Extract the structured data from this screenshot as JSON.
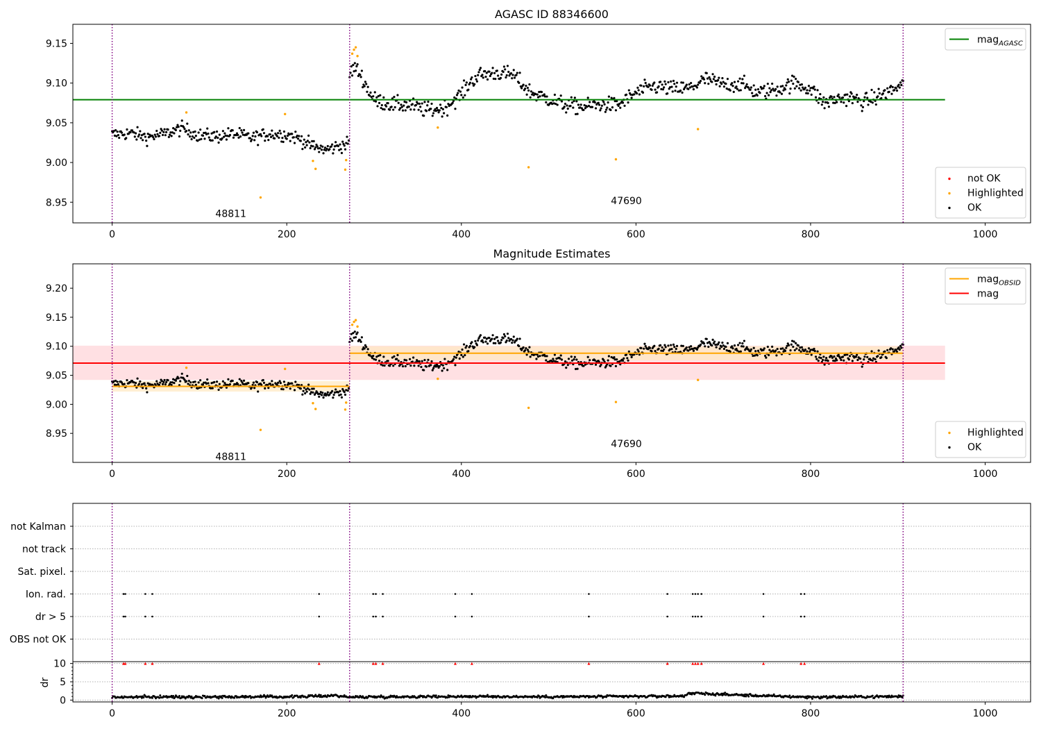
{
  "chart_data": [
    {
      "type": "scatter",
      "title": "AGASC ID 88346600",
      "xlim": [
        -45,
        1052
      ],
      "ylim": [
        8.924,
        9.174
      ],
      "xticks": [
        0,
        200,
        400,
        600,
        800,
        1000
      ],
      "yticks": [
        8.95,
        9.0,
        9.05,
        9.1,
        9.15
      ],
      "obs_boundaries": [
        0,
        272,
        906
      ],
      "obs_labels": [
        {
          "text": "48811",
          "x": 136,
          "y": 8.936
        },
        {
          "text": "47690",
          "x": 589,
          "y": 8.952
        }
      ],
      "reference_lines": [
        {
          "name": "mag_{AGASC}",
          "y": 9.079,
          "x": [
            -45,
            954
          ],
          "color": "#008000"
        }
      ],
      "legend": [
        {
          "position": "top-right",
          "entries": [
            {
              "label": "mag",
              "sub": "AGASC",
              "kind": "line",
              "color": "#008000"
            }
          ]
        },
        {
          "position": "lower-right",
          "entries": [
            {
              "label": "not OK",
              "kind": "dot",
              "color": "#ff0000"
            },
            {
              "label": "Highlighted",
              "kind": "dot",
              "color": "#ffa500"
            },
            {
              "label": "OK",
              "kind": "dot",
              "color": "#000000"
            }
          ]
        }
      ],
      "series": [
        {
          "name": "OK",
          "color": "#000000",
          "segments": [
            {
              "x": [
                0,
                20,
                40,
                60,
                80,
                100,
                120,
                140,
                160,
                180,
                200,
                215,
                230,
                245,
                260,
                272
              ],
              "y": [
                9.035,
                9.037,
                9.032,
                9.036,
                9.043,
                9.034,
                9.033,
                9.036,
                9.031,
                9.036,
                9.035,
                9.03,
                9.02,
                9.016,
                9.021,
                9.024
              ],
              "noise": 0.006
            },
            {
              "x": [
                272,
                278,
                285,
                292,
                300,
                320,
                340,
                360,
                380,
                400,
                410,
                420,
                440,
                460,
                470,
                480,
                500,
                520,
                540,
                560,
                580,
                600,
                620,
                640,
                660,
                680,
                700,
                720,
                740,
                760,
                780,
                800,
                815,
                830,
                845,
                860,
                880,
                906
              ],
              "y": [
                9.112,
                9.12,
                9.11,
                9.094,
                9.079,
                9.073,
                9.072,
                9.066,
                9.068,
                9.086,
                9.101,
                9.11,
                9.113,
                9.11,
                9.098,
                9.088,
                9.08,
                9.072,
                9.07,
                9.073,
                9.072,
                9.088,
                9.096,
                9.093,
                9.093,
                9.105,
                9.098,
                9.099,
                9.088,
                9.092,
                9.1,
                9.093,
                9.075,
                9.08,
                9.082,
                9.076,
                9.084,
                9.098
              ],
              "noise": 0.007
            }
          ]
        },
        {
          "name": "Highlighted",
          "color": "#ffa500",
          "points": [
            [
              85,
              9.063
            ],
            [
              170,
              8.956
            ],
            [
              198,
              9.061
            ],
            [
              230,
              9.002
            ],
            [
              233,
              8.992
            ],
            [
              267,
              8.991
            ],
            [
              268,
              9.003
            ],
            [
              275,
              9.137
            ],
            [
              277,
              9.142
            ],
            [
              279,
              9.145
            ],
            [
              281,
              9.134
            ],
            [
              373,
              9.044
            ],
            [
              477,
              8.994
            ],
            [
              577,
              9.004
            ],
            [
              671,
              9.042
            ]
          ]
        },
        {
          "name": "not OK",
          "color": "#ff0000",
          "points": []
        }
      ]
    },
    {
      "type": "scatter",
      "title": "Magnitude Estimates",
      "xlim": [
        -45,
        1052
      ],
      "ylim": [
        8.9,
        9.242
      ],
      "xticks": [
        0,
        200,
        400,
        600,
        800,
        1000
      ],
      "yticks": [
        8.95,
        9.0,
        9.05,
        9.1,
        9.15,
        9.2
      ],
      "obs_boundaries": [
        0,
        272,
        906
      ],
      "obs_labels": [
        {
          "text": "48811",
          "x": 136,
          "y": 8.91
        },
        {
          "text": "47690",
          "x": 589,
          "y": 8.932
        }
      ],
      "reference_lines": [
        {
          "name": "mag",
          "y": 9.071,
          "x": [
            -45,
            954
          ],
          "color": "#ff0000",
          "band": [
            9.042,
            9.101
          ]
        },
        {
          "name": "mag_{OBSID} 48811",
          "y": 9.031,
          "x": [
            0,
            272
          ],
          "color": "#ffa500",
          "band": [
            9.022,
            9.04
          ]
        },
        {
          "name": "mag_{OBSID} 47690",
          "y": 9.088,
          "x": [
            272,
            906
          ],
          "color": "#ffa500",
          "band": [
            9.076,
            9.1
          ]
        }
      ],
      "legend": [
        {
          "position": "top-right",
          "entries": [
            {
              "label": "mag",
              "sub": "OBSID",
              "kind": "line",
              "color": "#ffa500"
            },
            {
              "label": "mag",
              "kind": "line",
              "color": "#ff0000"
            }
          ]
        },
        {
          "position": "lower-right",
          "entries": [
            {
              "label": "Highlighted",
              "kind": "dot",
              "color": "#ffa500"
            },
            {
              "label": "OK",
              "kind": "dot",
              "color": "#000000"
            }
          ]
        }
      ]
    },
    {
      "type": "scatter",
      "title": "",
      "xlim": [
        -45,
        1052
      ],
      "xticks": [
        0,
        200,
        400,
        600,
        800,
        1000
      ],
      "flag_rows": [
        "not Kalman",
        "not track",
        "Sat. pixel.",
        "Ion. rad.",
        "dr > 5",
        "OBS not OK"
      ],
      "flagged_x": [
        13,
        15,
        38,
        46,
        237,
        299,
        302,
        310,
        393,
        412,
        546,
        636,
        665,
        668,
        671,
        675,
        746,
        789,
        793
      ],
      "flags_by_row": {
        "Ion. rad.": "flagged_x",
        "dr > 5": "flagged_x"
      },
      "obs_boundaries": [
        0,
        272,
        906
      ],
      "dr": {
        "ylabel": "dr",
        "ylim": [
          -0.5,
          10.5
        ],
        "yticks": [
          0,
          5,
          10
        ],
        "clip_value": 10,
        "typical": {
          "x": [
            0,
            100,
            200,
            240,
            255,
            272,
            300,
            400,
            500,
            600,
            655,
            660,
            740,
            800,
            906
          ],
          "y": [
            0.8,
            0.9,
            0.9,
            1.1,
            1.3,
            0.8,
            0.9,
            1.0,
            0.9,
            1.0,
            1.1,
            1.9,
            1.2,
            0.8,
            1.0
          ]
        }
      }
    }
  ]
}
